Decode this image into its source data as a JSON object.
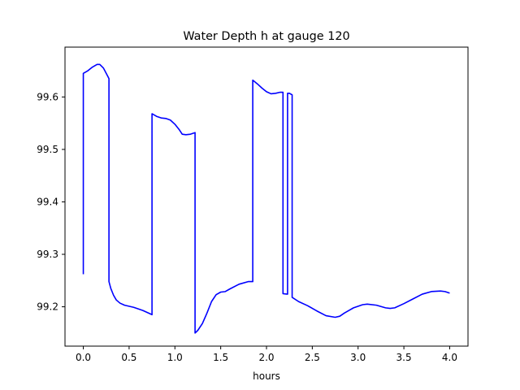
{
  "chart_data": {
    "type": "line",
    "title": "Water Depth h at gauge 120",
    "xlabel": "hours",
    "ylabel": "",
    "xlim": [
      -0.2,
      4.2
    ],
    "ylim": [
      99.125,
      99.695
    ],
    "grid": false,
    "x_ticks": [
      0.0,
      0.5,
      1.0,
      1.5,
      2.0,
      2.5,
      3.0,
      3.5,
      4.0
    ],
    "x_tick_labels": [
      "0.0",
      "0.5",
      "1.0",
      "1.5",
      "2.0",
      "2.5",
      "3.0",
      "3.5",
      "4.0"
    ],
    "y_ticks": [
      99.2,
      99.3,
      99.4,
      99.5,
      99.6
    ],
    "y_tick_labels": [
      "99.2",
      "99.3",
      "99.4",
      "99.5",
      "99.6"
    ],
    "series": [
      {
        "color": "#0000ff",
        "x": [
          0.0,
          0.0,
          0.05,
          0.1,
          0.15,
          0.18,
          0.22,
          0.25,
          0.28,
          0.28,
          0.3,
          0.33,
          0.36,
          0.4,
          0.45,
          0.55,
          0.65,
          0.75,
          0.75,
          0.8,
          0.85,
          0.9,
          0.95,
          1.0,
          1.05,
          1.08,
          1.12,
          1.17,
          1.22,
          1.22,
          1.25,
          1.3,
          1.35,
          1.4,
          1.45,
          1.5,
          1.55,
          1.6,
          1.7,
          1.8,
          1.85,
          1.85,
          1.9,
          1.95,
          2.0,
          2.05,
          2.1,
          2.15,
          2.18,
          2.18,
          2.23,
          2.23,
          2.25,
          2.28,
          2.28,
          2.35,
          2.45,
          2.55,
          2.65,
          2.75,
          2.8,
          2.85,
          2.95,
          3.05,
          3.1,
          3.2,
          3.3,
          3.35,
          3.4,
          3.5,
          3.6,
          3.7,
          3.8,
          3.9,
          3.95,
          4.0
        ],
        "y": [
          99.262,
          99.645,
          99.65,
          99.657,
          99.662,
          99.662,
          99.655,
          99.645,
          99.635,
          99.248,
          99.235,
          99.222,
          99.213,
          99.207,
          99.203,
          99.199,
          99.193,
          99.185,
          99.568,
          99.563,
          99.56,
          99.559,
          99.556,
          99.548,
          99.537,
          99.529,
          99.528,
          99.529,
          99.532,
          99.15,
          99.155,
          99.168,
          99.188,
          99.21,
          99.223,
          99.228,
          99.229,
          99.234,
          99.243,
          99.248,
          99.248,
          99.632,
          99.625,
          99.617,
          99.61,
          99.606,
          99.607,
          99.609,
          99.609,
          99.225,
          99.224,
          99.607,
          99.607,
          99.604,
          99.218,
          99.21,
          99.202,
          99.192,
          99.183,
          99.18,
          99.182,
          99.188,
          99.198,
          99.204,
          99.205,
          99.203,
          99.198,
          99.197,
          99.198,
          99.206,
          99.215,
          99.224,
          99.229,
          99.23,
          99.229,
          99.226
        ]
      }
    ]
  }
}
